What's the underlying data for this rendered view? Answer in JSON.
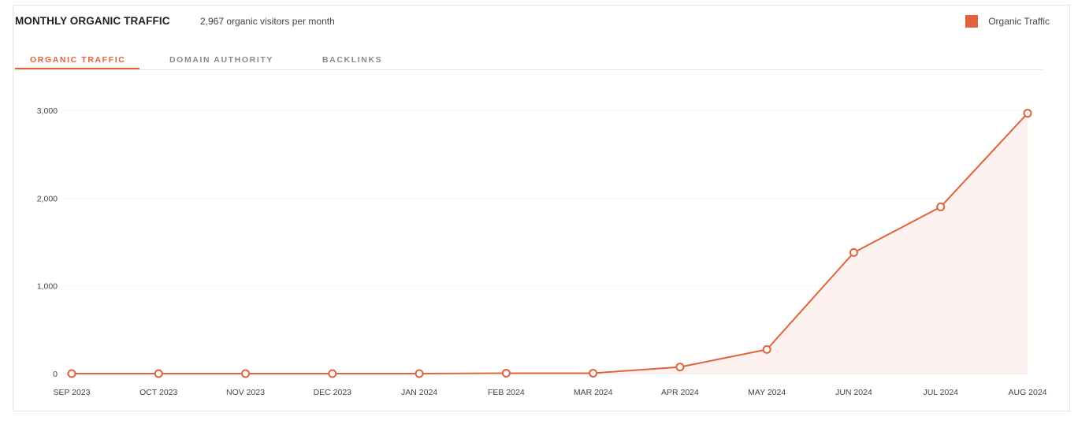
{
  "header": {
    "title": "MONTHLY ORGANIC TRAFFIC",
    "subtitle": "2,967 organic visitors per month"
  },
  "legend": {
    "label": "Organic Traffic",
    "color": "#e2623a"
  },
  "tabs": [
    {
      "label": "ORGANIC TRAFFIC",
      "active": true
    },
    {
      "label": "DOMAIN AUTHORITY",
      "active": false
    },
    {
      "label": "BACKLINKS",
      "active": false
    }
  ],
  "colors": {
    "accent": "#e2623a",
    "fill": "#fdf1ee",
    "grid": "#eeeeee"
  },
  "chart_data": {
    "type": "line",
    "categories": [
      "SEP 2023",
      "OCT 2023",
      "NOV 2023",
      "DEC 2023",
      "JAN 2024",
      "FEB 2024",
      "MAR 2024",
      "APR 2024",
      "MAY 2024",
      "JUN 2024",
      "JUL 2024",
      "AUG 2024"
    ],
    "series": [
      {
        "name": "Organic Traffic",
        "values": [
          0,
          0,
          0,
          0,
          0,
          5,
          5,
          75,
          275,
          1380,
          1900,
          2967
        ]
      }
    ],
    "yticks": [
      "0",
      "1,000",
      "2,000",
      "3,000"
    ],
    "ytick_values": [
      0,
      1000,
      2000,
      3000
    ],
    "ylim": [
      0,
      3000
    ],
    "grid": true,
    "area_fill": true,
    "legend_position": "top-right"
  }
}
